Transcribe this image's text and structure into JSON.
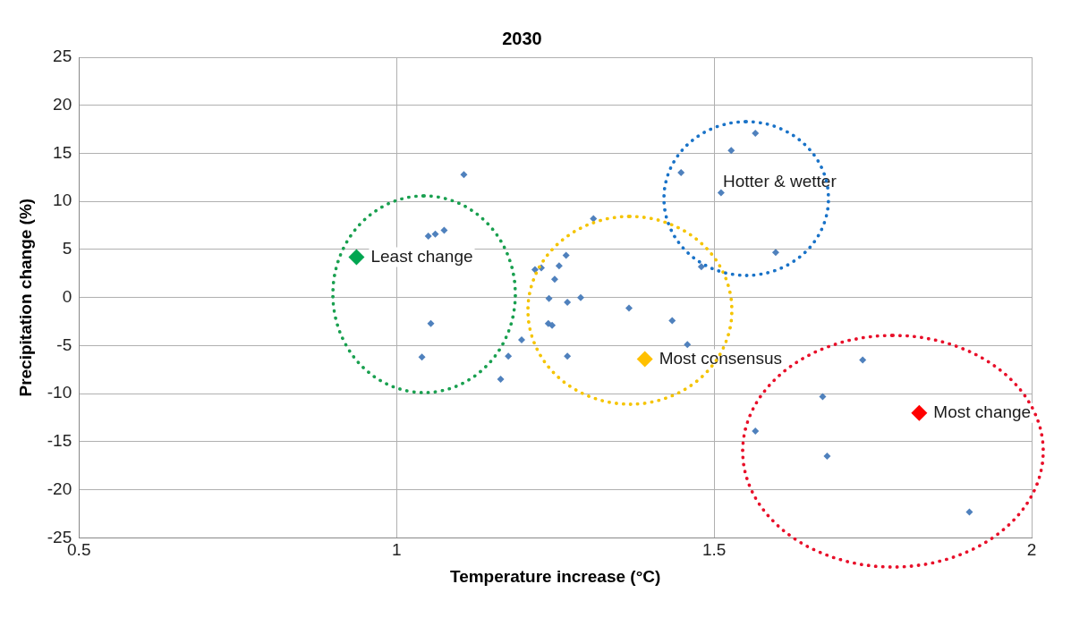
{
  "chart_data": {
    "type": "scatter",
    "title": "2030",
    "xlabel": "Temperature increase (°C)",
    "ylabel": "Precipitation change (%)",
    "xlim": [
      0.5,
      2
    ],
    "xticks": [
      0.5,
      1,
      1.5,
      2
    ],
    "ylim": [
      -25,
      25
    ],
    "yticks": [
      -25,
      -20,
      -15,
      -10,
      -5,
      0,
      5,
      10,
      15,
      20,
      25
    ],
    "grid": true,
    "legend": false,
    "marker": "diamond",
    "series": [
      {
        "color": "#4f81bd",
        "x": [
          1.106,
          1.05,
          1.061,
          1.075,
          1.054,
          1.04,
          1.164,
          1.176,
          1.197,
          1.218,
          1.228,
          1.256,
          1.267,
          1.249,
          1.24,
          1.269,
          1.29,
          1.239,
          1.245,
          1.269,
          1.31,
          1.366,
          1.434,
          1.458,
          1.448,
          1.527,
          1.565,
          1.511,
          1.597,
          1.48,
          1.734,
          1.671,
          1.565,
          1.678,
          1.902
        ],
        "values": [
          12.8,
          6.4,
          6.6,
          7.0,
          -2.7,
          -6.2,
          -8.5,
          -6.1,
          -4.4,
          2.9,
          3.1,
          3.3,
          4.4,
          1.9,
          -0.1,
          -0.5,
          0.0,
          -2.7,
          -2.9,
          -6.1,
          8.2,
          -1.1,
          -2.4,
          -4.9,
          13.0,
          15.3,
          17.1,
          10.9,
          4.7,
          3.2,
          -6.5,
          -10.3,
          -13.9,
          -16.5,
          -22.3
        ]
      },
      {
        "color": "#00a651",
        "x": [
          0.937
        ],
        "values": [
          4.2
        ]
      },
      {
        "color": "#ffc000",
        "x": [
          1.391
        ],
        "values": [
          -6.4
        ]
      },
      {
        "color": "#ff0000",
        "x": [
          1.823
        ],
        "values": [
          -12.0
        ]
      }
    ],
    "annotations": [
      {
        "text": "Least change",
        "x": 0.937,
        "y": 4.2
      },
      {
        "text": "Most consensus",
        "x": 1.391,
        "y": -6.4
      },
      {
        "text": "Most change",
        "x": 1.823,
        "y": -12.0
      },
      "Hotter & wetter"
    ]
  }
}
